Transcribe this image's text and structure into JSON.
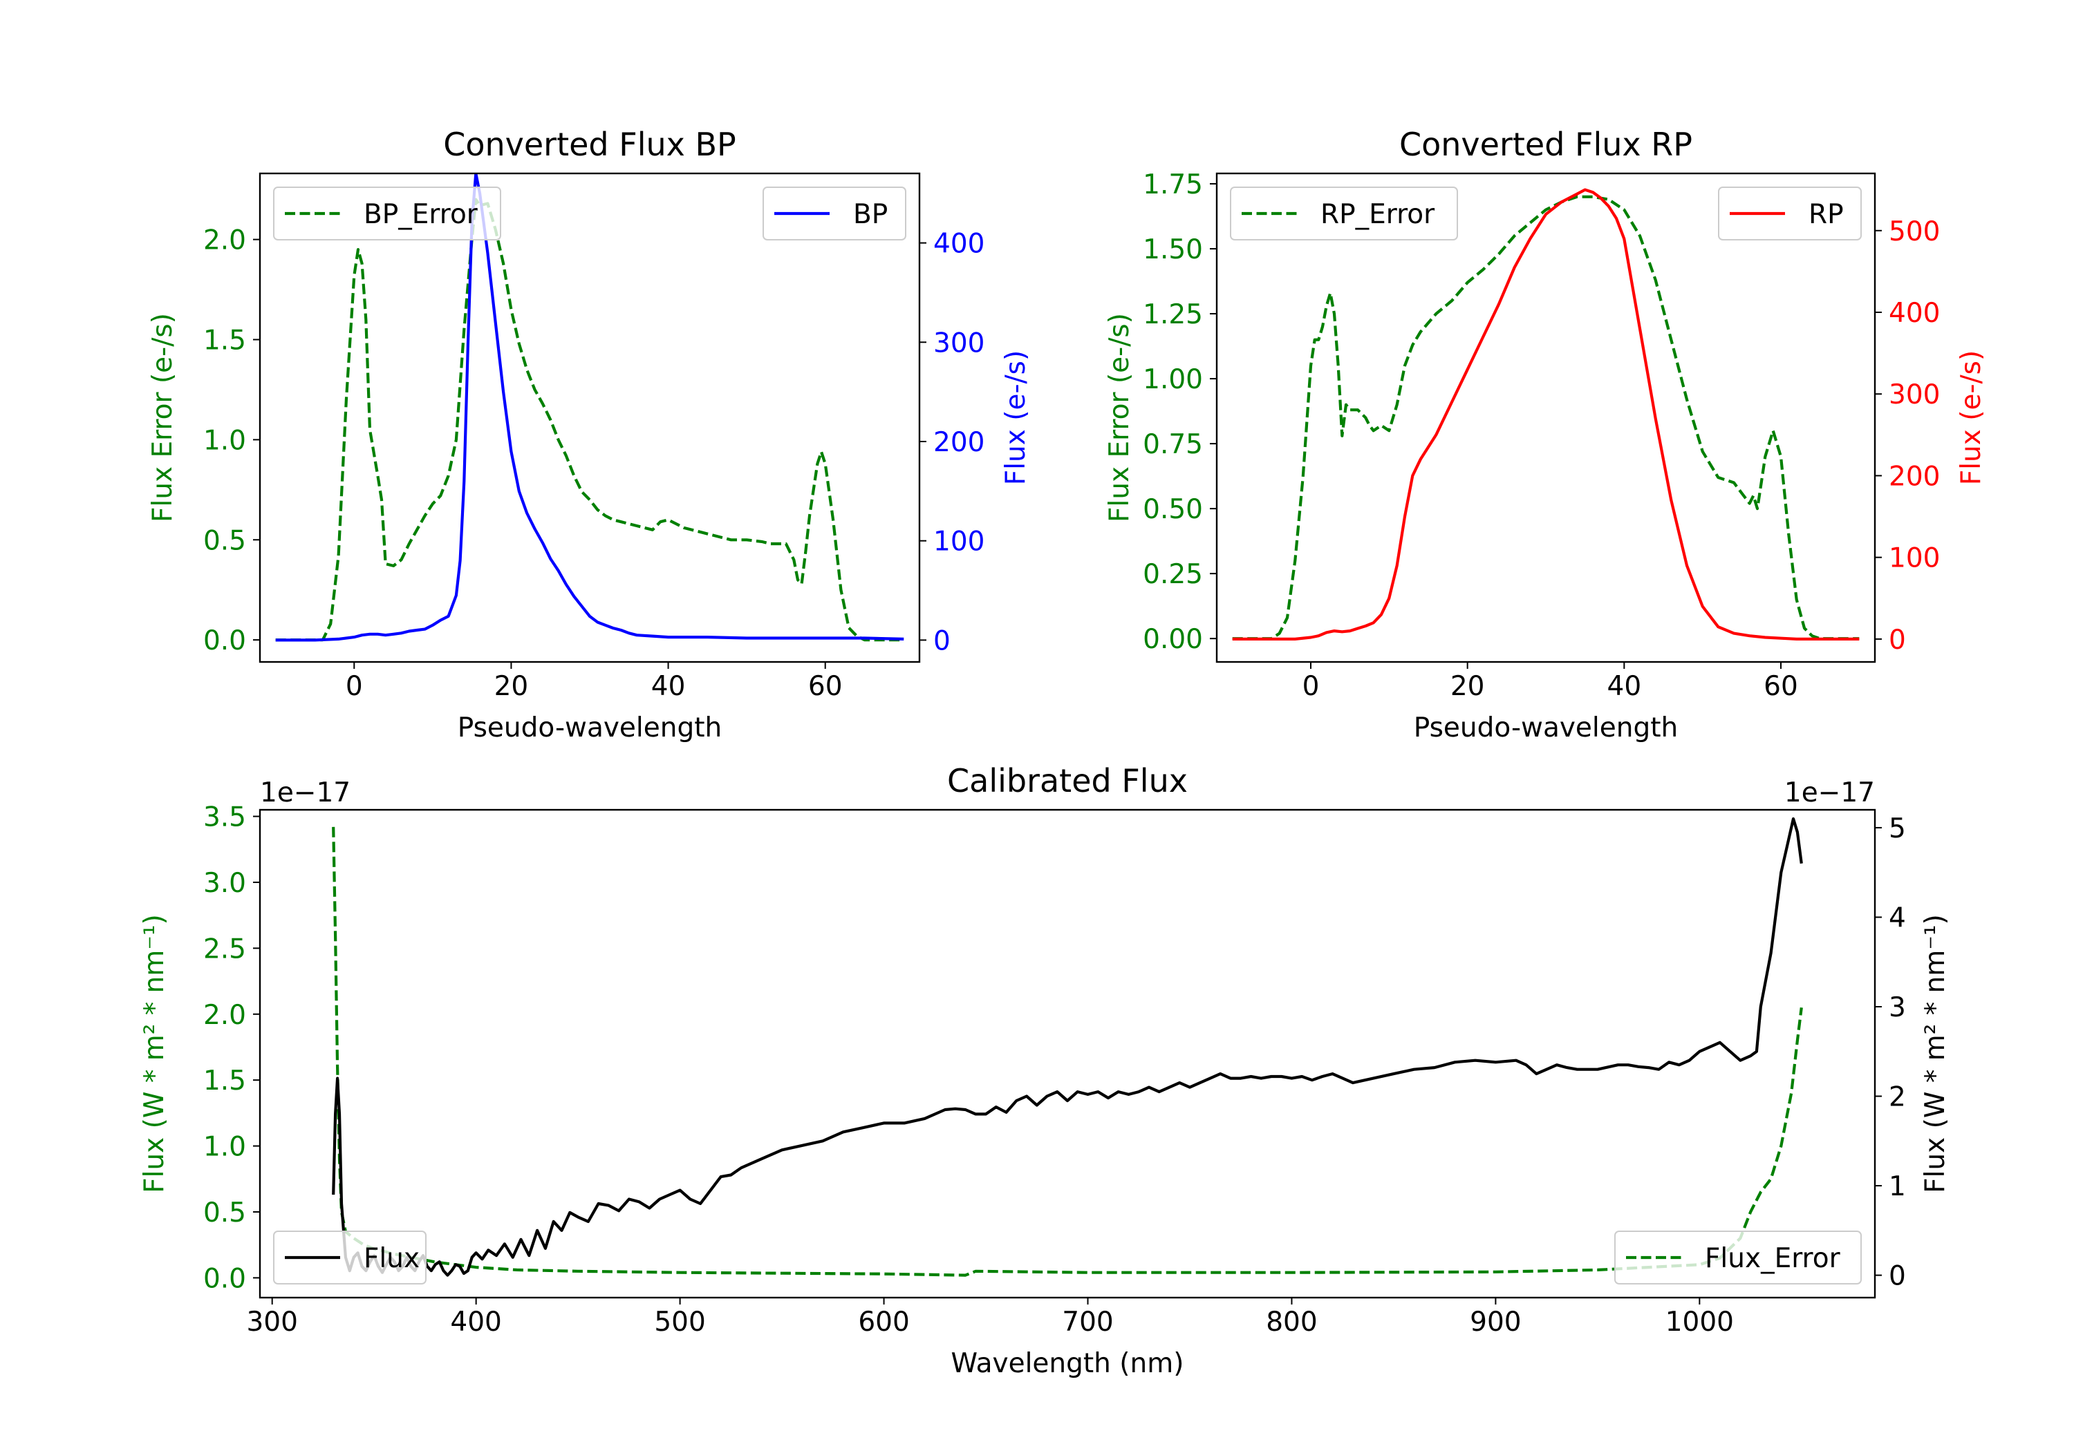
{
  "colors": {
    "error": "#008000",
    "bp": "#0000ff",
    "rp": "#ff0000",
    "flux": "#000000",
    "axis": "#000000"
  },
  "chart_data": [
    {
      "id": "bp",
      "type": "line",
      "title": "Converted Flux BP",
      "xlabel": "Pseudo-wavelength",
      "ylabel_left": "Flux Error (e-/s)",
      "ylabel_right": "Flux (e-/s)",
      "xlim": [
        -12,
        72
      ],
      "ylim_left": [
        -0.11,
        2.33
      ],
      "ylim_right": [
        -22,
        470
      ],
      "xticks": [
        0,
        20,
        40,
        60
      ],
      "yticks_left": [
        0.0,
        0.5,
        1.0,
        1.5,
        2.0
      ],
      "yticks_left_labels": [
        "0.0",
        "0.5",
        "1.0",
        "1.5",
        "2.0"
      ],
      "yticks_right": [
        0,
        100,
        200,
        300,
        400
      ],
      "yticks_right_labels": [
        "0",
        "100",
        "200",
        "300",
        "400"
      ],
      "legend_left": {
        "label": "BP_Error",
        "placement": "upper left"
      },
      "legend_right": {
        "label": "BP",
        "placement": "upper right"
      },
      "series_left": {
        "name": "BP_Error",
        "style": "dashed",
        "color": "#008000",
        "x": [
          -10,
          -6,
          -4,
          -3,
          -2,
          -1,
          0,
          0.5,
          1,
          1.5,
          2,
          3,
          3.5,
          4,
          5,
          6,
          7,
          8,
          9,
          10,
          11,
          12,
          13,
          14,
          15,
          15.5,
          16,
          17,
          18,
          19,
          20,
          21,
          22,
          23,
          24,
          25,
          26,
          27,
          28,
          29,
          30,
          31,
          32,
          33,
          34,
          35,
          36,
          37,
          38,
          39,
          40,
          42,
          44,
          46,
          48,
          50,
          52,
          53,
          54,
          55,
          56,
          56.5,
          57,
          57.5,
          58,
          59,
          59.5,
          60,
          61,
          62,
          63,
          64,
          65,
          66,
          68,
          70
        ],
        "y": [
          0.0,
          0.0,
          0.0,
          0.08,
          0.42,
          1.2,
          1.82,
          1.95,
          1.88,
          1.6,
          1.05,
          0.82,
          0.7,
          0.38,
          0.37,
          0.4,
          0.48,
          0.55,
          0.62,
          0.68,
          0.72,
          0.82,
          1.0,
          1.55,
          2.0,
          2.2,
          2.17,
          2.18,
          2.05,
          1.88,
          1.65,
          1.48,
          1.35,
          1.25,
          1.18,
          1.1,
          1.0,
          0.92,
          0.82,
          0.74,
          0.7,
          0.65,
          0.62,
          0.6,
          0.59,
          0.58,
          0.57,
          0.56,
          0.55,
          0.59,
          0.6,
          0.56,
          0.54,
          0.52,
          0.5,
          0.5,
          0.49,
          0.48,
          0.48,
          0.48,
          0.4,
          0.3,
          0.28,
          0.44,
          0.62,
          0.88,
          0.94,
          0.88,
          0.6,
          0.25,
          0.06,
          0.02,
          0.0,
          0.0,
          0.0,
          0.0
        ]
      },
      "series_right": {
        "name": "BP",
        "style": "solid",
        "color": "#0000ff",
        "x": [
          -10,
          -5,
          -2,
          0,
          1,
          2,
          3,
          4,
          5,
          6,
          7,
          8,
          9,
          10,
          11,
          12,
          13,
          13.5,
          14,
          14.5,
          15,
          15.5,
          16,
          17,
          18,
          19,
          20,
          21,
          22,
          23,
          24,
          25,
          26,
          27,
          28,
          29,
          30,
          31,
          32,
          33,
          34,
          35,
          36,
          38,
          40,
          45,
          50,
          55,
          60,
          65,
          70
        ],
        "y": [
          0,
          0,
          1,
          3,
          5,
          6,
          6,
          5,
          6,
          7,
          9,
          10,
          11,
          15,
          20,
          24,
          45,
          80,
          160,
          300,
          420,
          470,
          450,
          390,
          320,
          250,
          190,
          150,
          128,
          112,
          98,
          82,
          70,
          56,
          44,
          34,
          24,
          18,
          15,
          12,
          10,
          7,
          5,
          4,
          3,
          3,
          2,
          2,
          2,
          2,
          1
        ]
      }
    },
    {
      "id": "rp",
      "type": "line",
      "title": "Converted Flux RP",
      "xlabel": "Pseudo-wavelength",
      "ylabel_left": "Flux Error (e-/s)",
      "ylabel_right": "Flux (e-/s)",
      "xlim": [
        -12,
        72
      ],
      "ylim_left": [
        -0.09,
        1.79
      ],
      "ylim_right": [
        -28,
        570
      ],
      "xticks": [
        0,
        20,
        40,
        60
      ],
      "yticks_left": [
        0.0,
        0.25,
        0.5,
        0.75,
        1.0,
        1.25,
        1.5,
        1.75
      ],
      "yticks_left_labels": [
        "0.00",
        "0.25",
        "0.50",
        "0.75",
        "1.00",
        "1.25",
        "1.50",
        "1.75"
      ],
      "yticks_right": [
        0,
        100,
        200,
        300,
        400,
        500
      ],
      "yticks_right_labels": [
        "0",
        "100",
        "200",
        "300",
        "400",
        "500"
      ],
      "legend_left": {
        "label": "RP_Error",
        "placement": "upper left"
      },
      "legend_right": {
        "label": "RP",
        "placement": "upper right"
      },
      "series_left": {
        "name": "RP_Error",
        "style": "dashed",
        "color": "#008000",
        "x": [
          -10,
          -6,
          -5,
          -4,
          -3,
          -2,
          -1,
          0,
          0.5,
          1,
          1.5,
          2,
          2.5,
          3,
          3.5,
          4,
          4.5,
          5,
          6,
          7,
          7.5,
          8,
          9,
          10,
          11,
          12,
          13,
          14,
          16,
          18,
          20,
          22,
          24,
          26,
          28,
          30,
          32,
          34,
          36,
          38,
          40,
          42,
          44,
          46,
          48,
          50,
          52,
          54,
          55,
          56,
          56.5,
          57,
          57.5,
          58,
          59,
          60,
          61,
          62,
          63,
          64,
          65,
          66,
          68,
          70
        ],
        "y": [
          0.0,
          0.0,
          0.0,
          0.02,
          0.08,
          0.3,
          0.62,
          1.05,
          1.15,
          1.15,
          1.2,
          1.28,
          1.33,
          1.25,
          1.05,
          0.78,
          0.9,
          0.88,
          0.88,
          0.85,
          0.82,
          0.8,
          0.82,
          0.8,
          0.9,
          1.05,
          1.13,
          1.18,
          1.25,
          1.3,
          1.37,
          1.42,
          1.48,
          1.55,
          1.6,
          1.65,
          1.68,
          1.7,
          1.7,
          1.69,
          1.65,
          1.55,
          1.38,
          1.15,
          0.92,
          0.72,
          0.62,
          0.6,
          0.56,
          0.52,
          0.55,
          0.5,
          0.6,
          0.7,
          0.8,
          0.7,
          0.4,
          0.15,
          0.04,
          0.01,
          0.0,
          0.0,
          0.0,
          0.0
        ]
      },
      "series_right": {
        "name": "RP",
        "style": "solid",
        "color": "#ff0000",
        "x": [
          -10,
          -5,
          -2,
          0,
          1,
          2,
          3,
          4,
          5,
          6,
          7,
          8,
          9,
          10,
          11,
          12,
          13,
          14,
          16,
          18,
          20,
          22,
          24,
          26,
          28,
          30,
          32,
          34,
          35,
          36,
          37,
          38,
          39,
          40,
          42,
          44,
          46,
          48,
          50,
          52,
          54,
          56,
          58,
          60,
          62,
          65,
          70
        ],
        "y": [
          0,
          0,
          0,
          2,
          4,
          8,
          10,
          9,
          10,
          13,
          16,
          20,
          30,
          50,
          90,
          150,
          200,
          220,
          250,
          290,
          330,
          370,
          410,
          455,
          490,
          520,
          535,
          545,
          550,
          547,
          540,
          530,
          515,
          490,
          380,
          270,
          170,
          90,
          40,
          15,
          7,
          4,
          2,
          1,
          0,
          0,
          0
        ]
      }
    },
    {
      "id": "calibrated",
      "type": "line",
      "title": "Calibrated Flux",
      "xlabel": "Wavelength (nm)",
      "ylabel_left": "Flux (W * m² * nm⁻¹)",
      "ylabel_right": "Flux (W * m² * nm⁻¹)",
      "offset_left": "1e−17",
      "offset_right": "1e−17",
      "xlim": [
        294,
        1086
      ],
      "ylim_left": [
        -0.15,
        3.55
      ],
      "ylim_right": [
        -0.25,
        5.2
      ],
      "xticks": [
        300,
        400,
        500,
        600,
        700,
        800,
        900,
        1000
      ],
      "yticks_left": [
        0.0,
        0.5,
        1.0,
        1.5,
        2.0,
        2.5,
        3.0,
        3.5
      ],
      "yticks_left_labels": [
        "0.0",
        "0.5",
        "1.0",
        "1.5",
        "2.0",
        "2.5",
        "3.0",
        "3.5"
      ],
      "yticks_right": [
        0,
        1,
        2,
        3,
        4,
        5
      ],
      "yticks_right_labels": [
        "0",
        "1",
        "2",
        "3",
        "4",
        "5"
      ],
      "legend_left": {
        "label": "Flux",
        "placement": "lower left"
      },
      "legend_right": {
        "label": "Flux_Error",
        "placement": "lower right"
      },
      "series_left": {
        "name": "Flux_Error",
        "style": "dashed",
        "color": "#008000",
        "x": [
          330,
          331,
          332,
          333,
          334,
          336,
          340,
          345,
          350,
          360,
          370,
          380,
          390,
          400,
          420,
          450,
          500,
          550,
          600,
          640,
          645,
          700,
          800,
          900,
          950,
          1000,
          1010,
          1020,
          1025,
          1030,
          1035,
          1040,
          1045,
          1048,
          1050
        ],
        "y": [
          3.42,
          2.6,
          1.6,
          0.9,
          0.5,
          0.35,
          0.3,
          0.25,
          0.22,
          0.18,
          0.15,
          0.12,
          0.1,
          0.08,
          0.06,
          0.05,
          0.04,
          0.035,
          0.03,
          0.02,
          0.05,
          0.04,
          0.04,
          0.045,
          0.06,
          0.1,
          0.15,
          0.3,
          0.5,
          0.65,
          0.75,
          1.0,
          1.4,
          1.8,
          2.05
        ]
      },
      "series_right": {
        "name": "Flux",
        "style": "solid",
        "color": "#000000",
        "x": [
          330,
          331,
          332,
          333,
          334,
          336,
          338,
          340,
          342,
          344,
          346,
          348,
          350,
          352,
          354,
          356,
          358,
          360,
          362,
          364,
          366,
          368,
          370,
          372,
          374,
          376,
          378,
          380,
          382,
          384,
          386,
          388,
          390,
          392,
          394,
          396,
          398,
          400,
          403,
          406,
          410,
          414,
          418,
          422,
          426,
          430,
          434,
          438,
          442,
          446,
          450,
          455,
          460,
          465,
          470,
          475,
          480,
          485,
          490,
          495,
          500,
          505,
          510,
          515,
          520,
          525,
          530,
          540,
          550,
          560,
          570,
          580,
          590,
          600,
          610,
          620,
          630,
          635,
          640,
          645,
          650,
          655,
          660,
          665,
          670,
          675,
          680,
          685,
          690,
          695,
          700,
          705,
          710,
          715,
          720,
          725,
          730,
          735,
          740,
          745,
          750,
          755,
          760,
          765,
          770,
          775,
          780,
          785,
          790,
          795,
          800,
          805,
          810,
          815,
          820,
          825,
          830,
          840,
          850,
          860,
          870,
          880,
          890,
          900,
          910,
          915,
          920,
          925,
          930,
          935,
          940,
          950,
          960,
          965,
          970,
          975,
          980,
          985,
          990,
          995,
          1000,
          1005,
          1010,
          1015,
          1020,
          1025,
          1028,
          1030,
          1035,
          1040,
          1043,
          1046,
          1048,
          1050
        ],
        "y": [
          0.9,
          1.8,
          2.2,
          1.8,
          0.8,
          0.2,
          0.05,
          0.2,
          0.25,
          0.1,
          0.05,
          0.15,
          0.22,
          0.1,
          0.03,
          0.12,
          0.2,
          0.15,
          0.05,
          0.1,
          0.2,
          0.1,
          0.05,
          0.15,
          0.22,
          0.1,
          0.05,
          0.12,
          0.15,
          0.05,
          0.0,
          0.05,
          0.12,
          0.1,
          0.02,
          0.05,
          0.2,
          0.25,
          0.18,
          0.28,
          0.22,
          0.35,
          0.2,
          0.4,
          0.22,
          0.5,
          0.3,
          0.6,
          0.5,
          0.7,
          0.65,
          0.6,
          0.8,
          0.78,
          0.72,
          0.85,
          0.82,
          0.75,
          0.85,
          0.9,
          0.95,
          0.85,
          0.8,
          0.95,
          1.1,
          1.12,
          1.2,
          1.3,
          1.4,
          1.45,
          1.5,
          1.6,
          1.65,
          1.7,
          1.7,
          1.75,
          1.85,
          1.86,
          1.85,
          1.8,
          1.8,
          1.88,
          1.82,
          1.95,
          2.0,
          1.9,
          2.0,
          2.05,
          1.95,
          2.05,
          2.02,
          2.05,
          1.98,
          2.05,
          2.02,
          2.05,
          2.1,
          2.05,
          2.1,
          2.15,
          2.1,
          2.15,
          2.2,
          2.25,
          2.2,
          2.2,
          2.22,
          2.2,
          2.22,
          2.22,
          2.2,
          2.22,
          2.18,
          2.22,
          2.25,
          2.2,
          2.15,
          2.2,
          2.25,
          2.3,
          2.32,
          2.38,
          2.4,
          2.38,
          2.4,
          2.35,
          2.25,
          2.3,
          2.35,
          2.32,
          2.3,
          2.3,
          2.35,
          2.35,
          2.33,
          2.32,
          2.3,
          2.38,
          2.35,
          2.4,
          2.5,
          2.55,
          2.6,
          2.5,
          2.4,
          2.45,
          2.5,
          3.0,
          3.6,
          4.5,
          4.8,
          5.1,
          4.95,
          4.6
        ]
      }
    }
  ]
}
